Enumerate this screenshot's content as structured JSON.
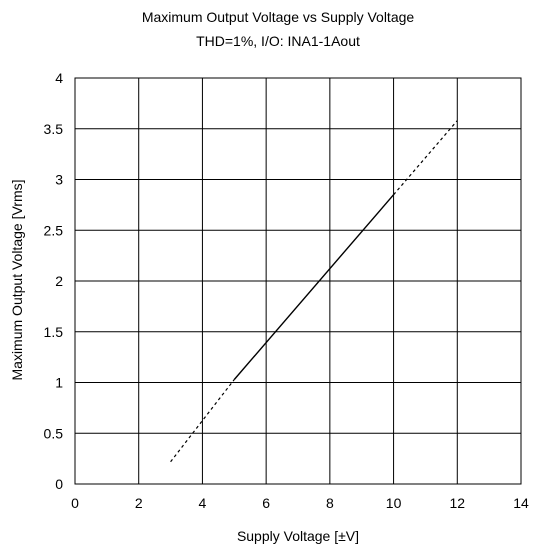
{
  "chart_data": {
    "type": "line",
    "title": "Maximum Output Voltage vs Supply Voltage",
    "subtitle": "THD=1%,  I/O: INA1-1Aout",
    "xlabel": "Supply Voltage [±V]",
    "ylabel": "Maximum Output Voltage [Vrms]",
    "xlim": [
      0,
      14
    ],
    "ylim": [
      0,
      4
    ],
    "x_ticks": [
      0,
      2,
      4,
      6,
      8,
      10,
      12,
      14
    ],
    "y_ticks": [
      0,
      0.5,
      1,
      1.5,
      2,
      2.5,
      3,
      3.5,
      4
    ],
    "x_tick_labels": [
      "0",
      "2",
      "4",
      "6",
      "8",
      "10",
      "12",
      "14"
    ],
    "y_tick_labels": [
      "0",
      "0.5",
      "1",
      "1.5",
      "2",
      "2.5",
      "3",
      "3.5",
      "4"
    ],
    "grid": true,
    "series": [
      {
        "style": "dashed",
        "x": [
          3,
          5
        ],
        "y": [
          0.22,
          1.03
        ]
      },
      {
        "style": "solid",
        "x": [
          5,
          10
        ],
        "y": [
          1.03,
          2.85
        ]
      },
      {
        "style": "dashed",
        "x": [
          10,
          12
        ],
        "y": [
          2.85,
          3.58
        ]
      }
    ]
  }
}
